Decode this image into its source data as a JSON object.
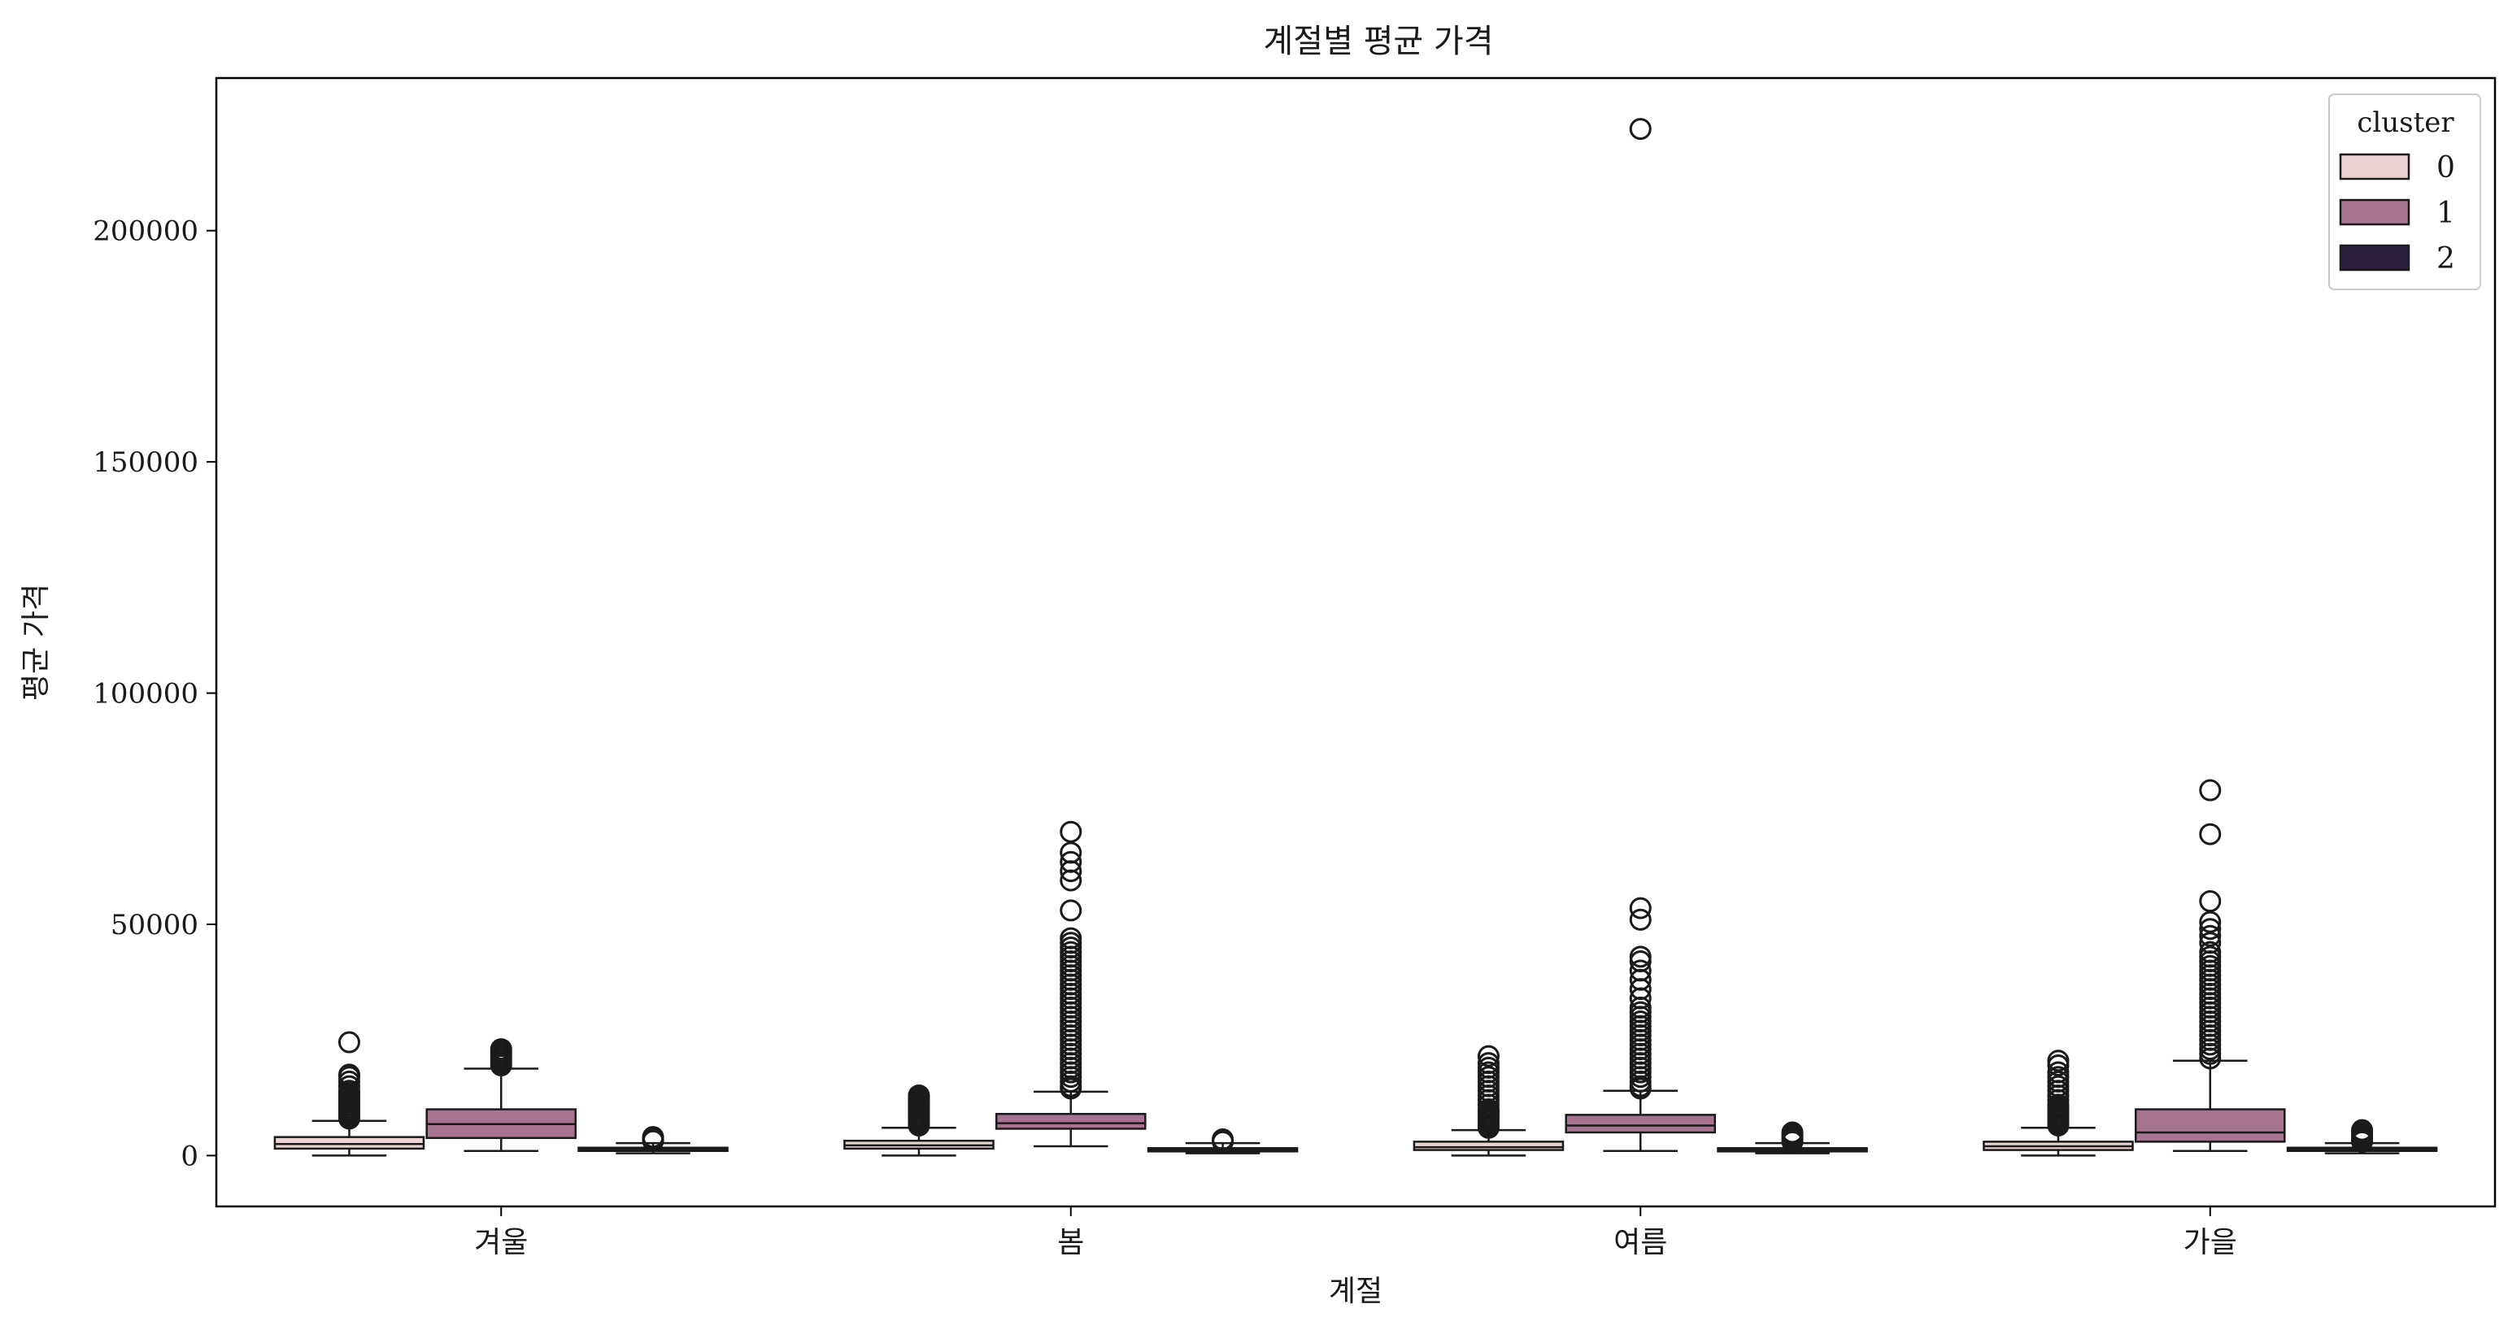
{
  "chart_data": {
    "type": "box",
    "title": "계절별 평균 가격",
    "xlabel": "계절",
    "ylabel": "평균 가격",
    "categories": [
      "겨울",
      "봄",
      "여름",
      "가을"
    ],
    "y_ticks": [
      0,
      50000,
      100000,
      150000,
      200000
    ],
    "y_tick_labels": [
      "0",
      "50000",
      "100000",
      "150000",
      "200000"
    ],
    "ylim": [
      -11000,
      233000
    ],
    "grid": false,
    "legend": {
      "title": "cluster",
      "position": "top-right",
      "entries": [
        {
          "label": "0",
          "color": "#ead3d2"
        },
        {
          "label": "1",
          "color": "#a77391"
        },
        {
          "label": "2",
          "color": "#2c1e3d"
        }
      ]
    },
    "series": [
      {
        "name": "0",
        "color": "#ead3d2",
        "boxes": [
          {
            "whisker_low": 0,
            "q1": 1500,
            "median": 2500,
            "q3": 4000,
            "whisker_high": 7500,
            "outliers_hi": [
              8000,
              8500,
              9000,
              9500,
              10000,
              10500,
              11000,
              11500,
              12000,
              12500,
              13000,
              13500,
              14000,
              15000,
              16000,
              17000,
              17500,
              24500
            ]
          },
          {
            "whisker_low": 0,
            "q1": 1500,
            "median": 2200,
            "q3": 3200,
            "whisker_high": 6000,
            "outliers_hi": [
              6500,
              7000,
              7500,
              8000,
              8500,
              9000,
              9500,
              10000,
              10500,
              11000,
              11500,
              12000,
              12500,
              13000
            ]
          },
          {
            "whisker_low": 0,
            "q1": 1200,
            "median": 1800,
            "q3": 3000,
            "whisker_high": 5500,
            "outliers_hi": [
              6000,
              6500,
              7000,
              7500,
              8000,
              8500,
              9000,
              9500,
              10000,
              11000,
              12000,
              13000,
              14000,
              15000,
              16000,
              17000,
              18000,
              19000,
              20000,
              21500
            ]
          },
          {
            "whisker_low": 0,
            "q1": 1200,
            "median": 2000,
            "q3": 3000,
            "whisker_high": 6000,
            "outliers_hi": [
              6500,
              7000,
              7500,
              8000,
              8500,
              9000,
              9500,
              10000,
              10500,
              11000,
              12000,
              13000,
              14000,
              15000,
              16000,
              17000,
              18000,
              19500,
              20500
            ]
          }
        ]
      },
      {
        "name": "1",
        "color": "#a77391",
        "boxes": [
          {
            "whisker_low": 1000,
            "q1": 3800,
            "median": 6800,
            "q3": 10000,
            "whisker_high": 18800,
            "outliers_hi": [
              19500,
              20000,
              20500,
              21000,
              21500,
              22000,
              22500,
              23000
            ]
          },
          {
            "whisker_low": 2000,
            "q1": 5800,
            "median": 7000,
            "q3": 9000,
            "whisker_high": 13800,
            "outliers_hi": [
              14500,
              15000,
              16000,
              17000,
              18000,
              19000,
              20000,
              21000,
              22000,
              23000,
              24000,
              25000,
              26000,
              27000,
              28000,
              29000,
              30000,
              31000,
              32000,
              33000,
              34000,
              35000,
              36000,
              37000,
              38000,
              39000,
              40000,
              41000,
              42000,
              43000,
              44000,
              45000,
              46000,
              47000,
              53000,
              59500,
              61500,
              63500,
              65500,
              70000
            ]
          },
          {
            "whisker_low": 1000,
            "q1": 5000,
            "median": 6500,
            "q3": 8800,
            "whisker_high": 14000,
            "outliers_hi": [
              14500,
              15000,
              16000,
              17000,
              18000,
              19000,
              20000,
              21000,
              22000,
              23000,
              24000,
              25000,
              26000,
              27000,
              28000,
              29000,
              30000,
              31000,
              32000,
              34000,
              36000,
              38000,
              40000,
              42000,
              43000,
              51000,
              53500,
              222000
            ]
          },
          {
            "whisker_low": 1000,
            "q1": 3000,
            "median": 5000,
            "q3": 10000,
            "whisker_high": 20500,
            "outliers_hi": [
              21000,
              22000,
              23000,
              24000,
              25000,
              26000,
              27000,
              28000,
              29000,
              30000,
              31000,
              32000,
              33000,
              34000,
              35000,
              36000,
              37000,
              38000,
              39000,
              40000,
              41000,
              42000,
              43000,
              44000,
              46000,
              47500,
              49000,
              50500,
              55000,
              69500,
              79000
            ]
          }
        ]
      },
      {
        "name": "2",
        "color": "#2c1e3d",
        "boxes": [
          {
            "whisker_low": 500,
            "q1": 1000,
            "median": 1200,
            "q3": 1700,
            "whisker_high": 2700,
            "outliers_hi": [
              3200,
              3600,
              4000
            ]
          },
          {
            "whisker_low": 500,
            "q1": 900,
            "median": 1100,
            "q3": 1600,
            "whisker_high": 2700,
            "outliers_hi": [
              3000,
              3500
            ]
          },
          {
            "whisker_low": 500,
            "q1": 900,
            "median": 1100,
            "q3": 1600,
            "whisker_high": 2700,
            "outliers_hi": [
              3000,
              3500,
              4000,
              4500,
              5000
            ]
          },
          {
            "whisker_low": 500,
            "q1": 1000,
            "median": 1200,
            "q3": 1700,
            "whisker_high": 2700,
            "outliers_hi": [
              3000,
              3500,
              4000,
              4500,
              5000,
              5500
            ]
          }
        ]
      }
    ]
  }
}
